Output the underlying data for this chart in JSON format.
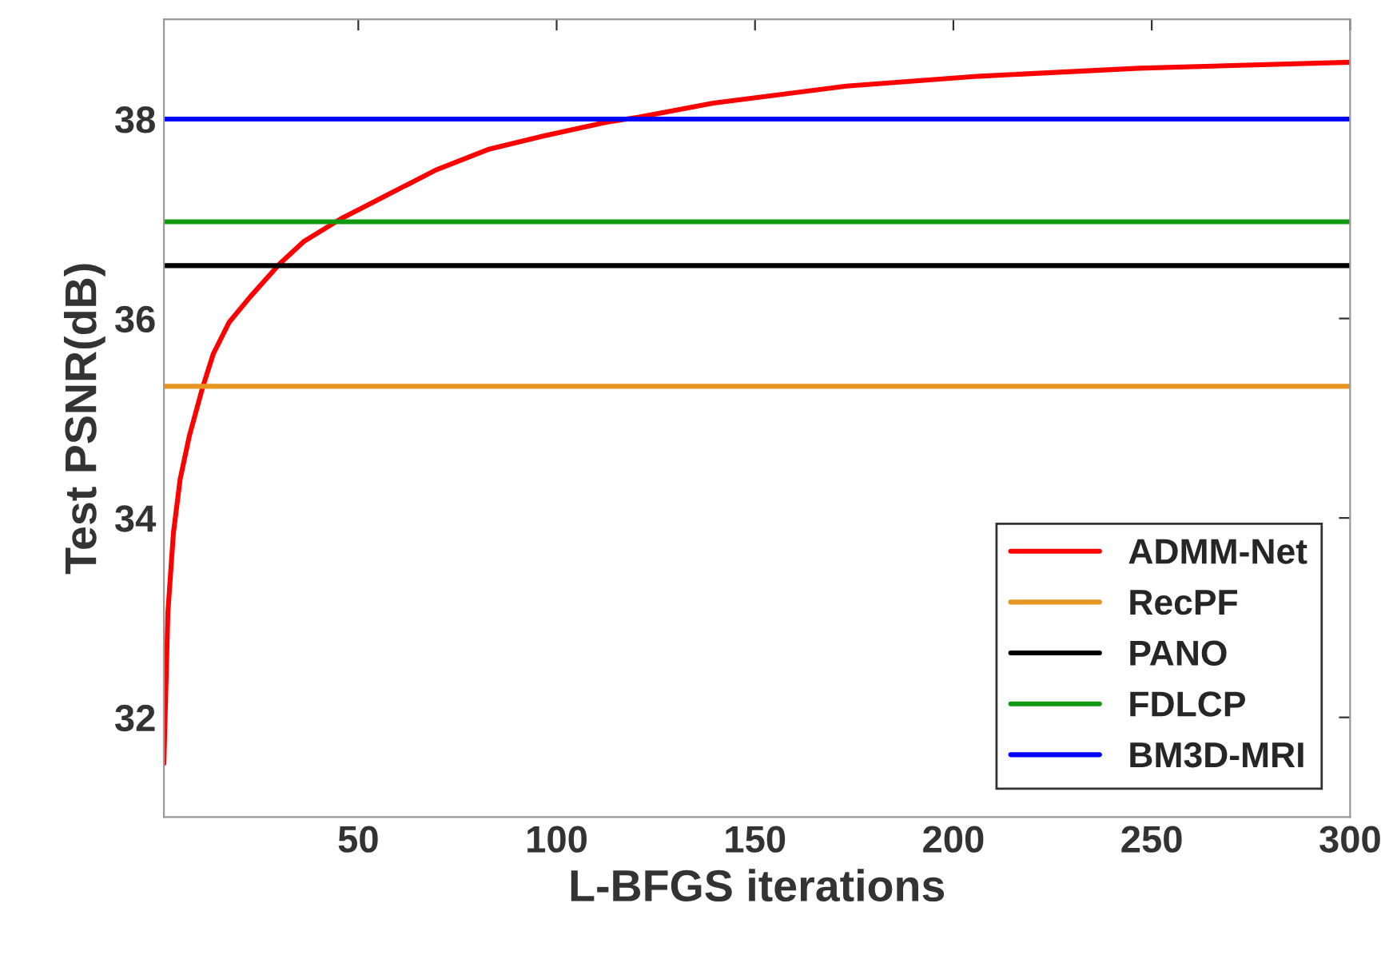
{
  "chart_data": {
    "type": "line",
    "xlabel": "L-BFGS iterations",
    "ylabel": "Test PSNR(dB)",
    "xlim": [
      1,
      300
    ],
    "xticks": [
      50,
      100,
      150,
      200,
      250,
      300
    ],
    "ylim": [
      31,
      39
    ],
    "yticks": [
      32,
      34,
      36,
      38
    ],
    "grid": false,
    "legend": "bottom right",
    "marker": "none",
    "line_style": "solid",
    "series": [
      {
        "name": "ADMM-Net",
        "color": "#ff0000",
        "x": [
          1,
          2,
          3.4,
          5.1,
          7.4,
          10.7,
          13.4,
          17.4,
          22.8,
          30.2,
          36.2,
          45.6,
          56.4,
          69.6,
          83.1,
          96.6,
          112.7,
          120.8,
          139.5,
          173,
          206.6,
          246.8,
          300
        ],
        "values": [
          31.54,
          33.05,
          33.85,
          34.39,
          34.82,
          35.3,
          35.64,
          35.96,
          36.22,
          36.55,
          36.77,
          37.0,
          37.22,
          37.49,
          37.7,
          37.83,
          37.97,
          38.02,
          38.16,
          38.33,
          38.43,
          38.51,
          38.57
        ]
      },
      {
        "name": "RecPF",
        "color": "#e69520",
        "x": [
          1,
          300
        ],
        "values": [
          35.32,
          35.32
        ]
      },
      {
        "name": "PANO",
        "color": "#000000",
        "x": [
          1,
          300
        ],
        "values": [
          36.53,
          36.53
        ]
      },
      {
        "name": "FDLCP",
        "color": "#119911",
        "x": [
          1,
          300
        ],
        "values": [
          36.97,
          36.97
        ]
      },
      {
        "name": "BM3D-MRI",
        "color": "#0000ff",
        "x": [
          1,
          300
        ],
        "values": [
          38.0,
          38.0
        ]
      }
    ]
  }
}
